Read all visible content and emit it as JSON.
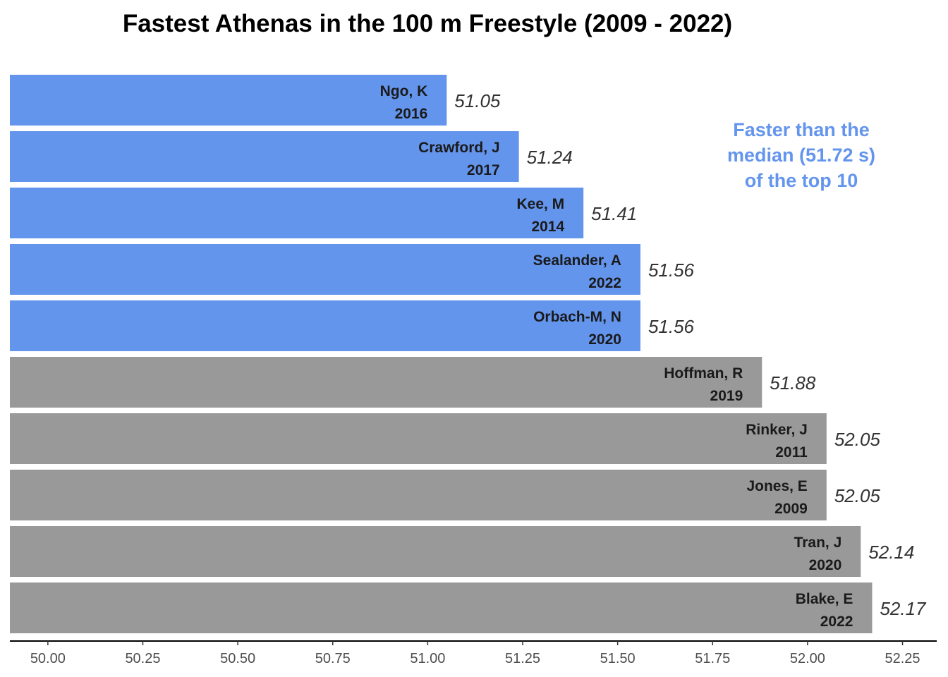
{
  "chart_data": {
    "type": "bar",
    "orientation": "horizontal",
    "title": "Fastest Athenas in the 100 m Freestyle (2009 - 2022)",
    "annotation_lines": [
      "Faster than the",
      "median (51.72 s)",
      "of the top 10"
    ],
    "median": 51.72,
    "xlim": [
      49.9,
      52.34
    ],
    "xticks": [
      "50.00",
      "50.25",
      "50.50",
      "50.75",
      "51.00",
      "51.25",
      "51.50",
      "51.75",
      "52.00",
      "52.25"
    ],
    "xtick_values": [
      50.0,
      50.25,
      50.5,
      50.75,
      51.0,
      51.25,
      51.5,
      51.75,
      52.0,
      52.25
    ],
    "grid": false,
    "colors": {
      "faster": "#6495ED",
      "slower": "#999999",
      "annotation": "#6495ED"
    },
    "bars": [
      {
        "name": "Ngo, K",
        "year": "2016",
        "value": 51.05,
        "value_label": "51.05"
      },
      {
        "name": "Crawford, J",
        "year": "2017",
        "value": 51.24,
        "value_label": "51.24"
      },
      {
        "name": "Kee, M",
        "year": "2014",
        "value": 51.41,
        "value_label": "51.41"
      },
      {
        "name": "Sealander, A",
        "year": "2022",
        "value": 51.56,
        "value_label": "51.56"
      },
      {
        "name": "Orbach-M, N",
        "year": "2020",
        "value": 51.56,
        "value_label": "51.56"
      },
      {
        "name": "Hoffman, R",
        "year": "2019",
        "value": 51.88,
        "value_label": "51.88"
      },
      {
        "name": "Rinker, J",
        "year": "2011",
        "value": 52.05,
        "value_label": "52.05"
      },
      {
        "name": "Jones, E",
        "year": "2009",
        "value": 52.05,
        "value_label": "52.05"
      },
      {
        "name": "Tran, J",
        "year": "2020",
        "value": 52.14,
        "value_label": "52.14"
      },
      {
        "name": "Blake, E",
        "year": "2022",
        "value": 52.17,
        "value_label": "52.17"
      }
    ]
  }
}
